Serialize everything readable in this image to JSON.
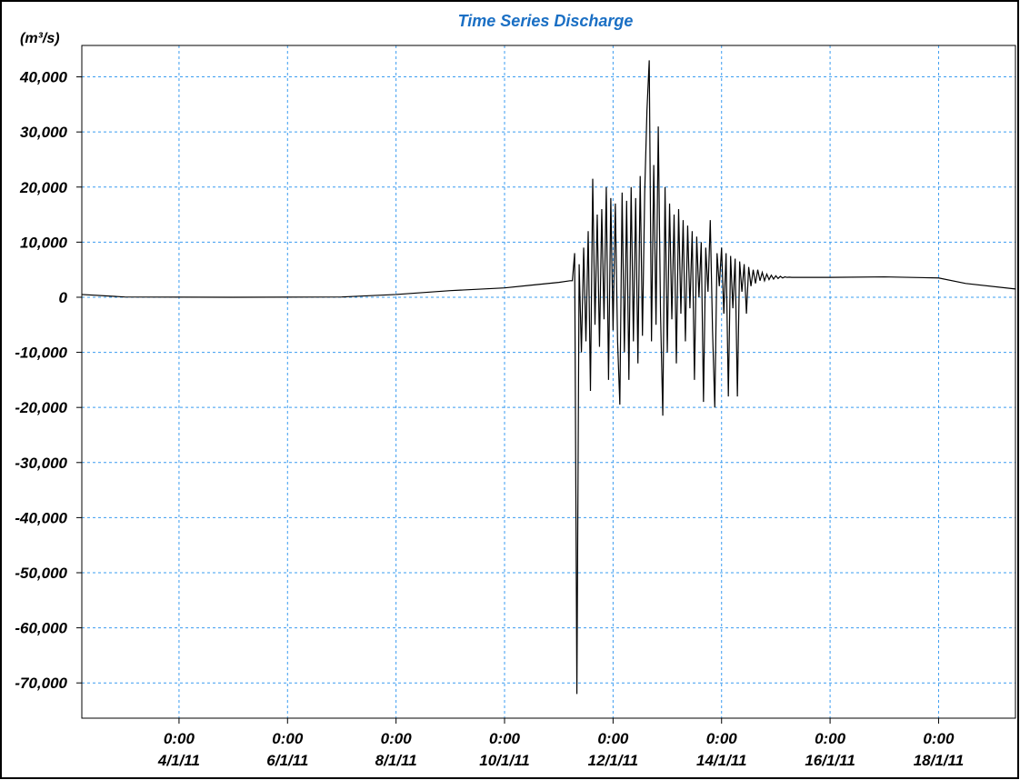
{
  "chart_data": {
    "type": "line",
    "title": "Time Series Discharge",
    "y_label": "(m³/s)",
    "ylim": [
      -76400,
      45700
    ],
    "yticks": [
      {
        "value": -70000,
        "label": "-70,000"
      },
      {
        "value": -60000,
        "label": "-60,000"
      },
      {
        "value": -50000,
        "label": "-50,000"
      },
      {
        "value": -40000,
        "label": "-40,000"
      },
      {
        "value": -30000,
        "label": "-30,000"
      },
      {
        "value": -20000,
        "label": "-20,000"
      },
      {
        "value": -10000,
        "label": "-10,000"
      },
      0,
      {
        "value": 10000,
        "label": "10,000"
      },
      {
        "value": 20000,
        "label": "20,000"
      },
      {
        "value": 30000,
        "label": "30,000"
      },
      {
        "value": 40000,
        "label": "40,000"
      }
    ],
    "xlim": [
      "2/1/11 5:00",
      "19/1/11 10:00"
    ],
    "xticks": [
      {
        "value": "4/1/11 0:00",
        "label": [
          "0:00",
          "4/1/11"
        ]
      },
      {
        "value": "6/1/11 0:00",
        "label": [
          "0:00",
          "6/1/11"
        ]
      },
      {
        "value": "8/1/11 0:00",
        "label": [
          "0:00",
          "8/1/11"
        ]
      },
      {
        "value": "10/1/11 0:00",
        "label": [
          "0:00",
          "10/1/11"
        ]
      },
      {
        "value": "12/1/11 0:00",
        "label": [
          "0:00",
          "12/1/11"
        ]
      },
      {
        "value": "14/1/11 0:00",
        "label": [
          "0:00",
          "14/1/11"
        ]
      },
      {
        "value": "16/1/11 0:00",
        "label": [
          "0:00",
          "16/1/11"
        ]
      },
      {
        "value": "18/1/11 0:00",
        "label": [
          "0:00",
          "18/1/11"
        ]
      }
    ],
    "grid": true,
    "x": [
      "2/1/11 5:00",
      "3/1/11 0:00",
      "5/1/11 0:00",
      "7/1/11 0:00",
      "8/1/11 0:00",
      "9/1/11 0:00",
      "10/1/11 0:00",
      "10/1/11 12:00",
      "11/1/11 0:00",
      "11/1/11 5:00",
      "11/1/11 6:00",
      "11/1/11 7:00",
      "11/1/11 8:00",
      "11/1/11 9:00",
      "11/1/11 10:00",
      "11/1/11 11:00",
      "11/1/11 12:00",
      "11/1/11 13:00",
      "11/1/11 14:00",
      "11/1/11 15:00",
      "11/1/11 16:00",
      "11/1/11 17:00",
      "11/1/11 18:00",
      "11/1/11 19:00",
      "11/1/11 20:00",
      "11/1/11 21:00",
      "11/1/11 22:00",
      "11/1/11 23:00",
      "12/1/11 0:00",
      "12/1/11 1:00",
      "12/1/11 2:00",
      "12/1/11 3:00",
      "12/1/11 4:00",
      "12/1/11 5:00",
      "12/1/11 6:00",
      "12/1/11 7:00",
      "12/1/11 8:00",
      "12/1/11 9:00",
      "12/1/11 10:00",
      "12/1/11 11:00",
      "12/1/11 12:00",
      "12/1/11 13:00",
      "12/1/11 14:00",
      "12/1/11 15:00",
      "12/1/11 16:00",
      "12/1/11 17:00",
      "12/1/11 18:00",
      "12/1/11 19:00",
      "12/1/11 20:00",
      "12/1/11 21:00",
      "12/1/11 22:00",
      "12/1/11 23:00",
      "13/1/11 0:00",
      "13/1/11 1:00",
      "13/1/11 2:00",
      "13/1/11 3:00",
      "13/1/11 4:00",
      "13/1/11 5:00",
      "13/1/11 6:00",
      "13/1/11 7:00",
      "13/1/11 8:00",
      "13/1/11 9:00",
      "13/1/11 10:00",
      "13/1/11 11:00",
      "13/1/11 12:00",
      "13/1/11 13:00",
      "13/1/11 14:00",
      "13/1/11 15:00",
      "13/1/11 16:00",
      "13/1/11 17:00",
      "13/1/11 18:00",
      "13/1/11 19:00",
      "13/1/11 20:00",
      "13/1/11 21:00",
      "13/1/11 22:00",
      "13/1/11 23:00",
      "14/1/11 0:00",
      "14/1/11 1:00",
      "14/1/11 2:00",
      "14/1/11 3:00",
      "14/1/11 4:00",
      "14/1/11 5:00",
      "14/1/11 6:00",
      "14/1/11 7:00",
      "14/1/11 8:00",
      "14/1/11 9:00",
      "14/1/11 10:00",
      "14/1/11 11:00",
      "14/1/11 12:00",
      "14/1/11 13:00",
      "14/1/11 14:00",
      "14/1/11 15:00",
      "14/1/11 16:00",
      "14/1/11 17:00",
      "14/1/11 18:00",
      "14/1/11 19:00",
      "14/1/11 20:00",
      "14/1/11 21:00",
      "14/1/11 22:00",
      "14/1/11 23:00",
      "15/1/11 0:00",
      "15/1/11 1:00",
      "15/1/11 2:00",
      "15/1/11 3:00",
      "15/1/11 4:00",
      "15/1/11 5:00",
      "15/1/11 6:00",
      "15/1/11 7:00",
      "15/1/11 8:00",
      "15/1/11 9:00",
      "16/1/11 0:00",
      "17/1/11 0:00",
      "18/1/11 0:00",
      "18/1/11 12:00",
      "19/1/11 10:00"
    ],
    "series": [
      {
        "color": "#000000",
        "values": [
          500,
          50,
          0,
          50,
          500,
          1200,
          1700,
          2200,
          2700,
          3000,
          3000,
          8000,
          -72000,
          6000,
          -10000,
          9000,
          -8000,
          12000,
          -17000,
          21500,
          -5000,
          15000,
          -9000,
          16000,
          -4000,
          20000,
          -15000,
          18000,
          -6000,
          17000,
          -8000,
          -19500,
          19000,
          -10000,
          17500,
          -15000,
          20000,
          -8000,
          18000,
          -12000,
          22000,
          -7000,
          19000,
          34000,
          43000,
          -8000,
          24000,
          -5000,
          31000,
          -3000,
          -21500,
          20000,
          -10000,
          17000,
          -4000,
          15000,
          -12000,
          16000,
          -3000,
          14000,
          -8000,
          13000,
          -2000,
          12000,
          -15000,
          11000,
          0,
          10000,
          -19000,
          9000,
          1000,
          14000,
          -6000,
          -20000,
          8000,
          2000,
          9000,
          -3000,
          8000,
          -18000,
          7500,
          -2000,
          7000,
          -18000,
          6500,
          1000,
          6000,
          -3000,
          5500,
          2000,
          5000,
          2500,
          5000,
          3000,
          4500,
          3000,
          4200,
          3200,
          4000,
          3300,
          3900,
          3400,
          3800,
          3500,
          3700,
          3600,
          3650,
          3600,
          3600,
          3600,
          3600,
          3700,
          3500,
          2500,
          1500
        ]
      }
    ]
  }
}
